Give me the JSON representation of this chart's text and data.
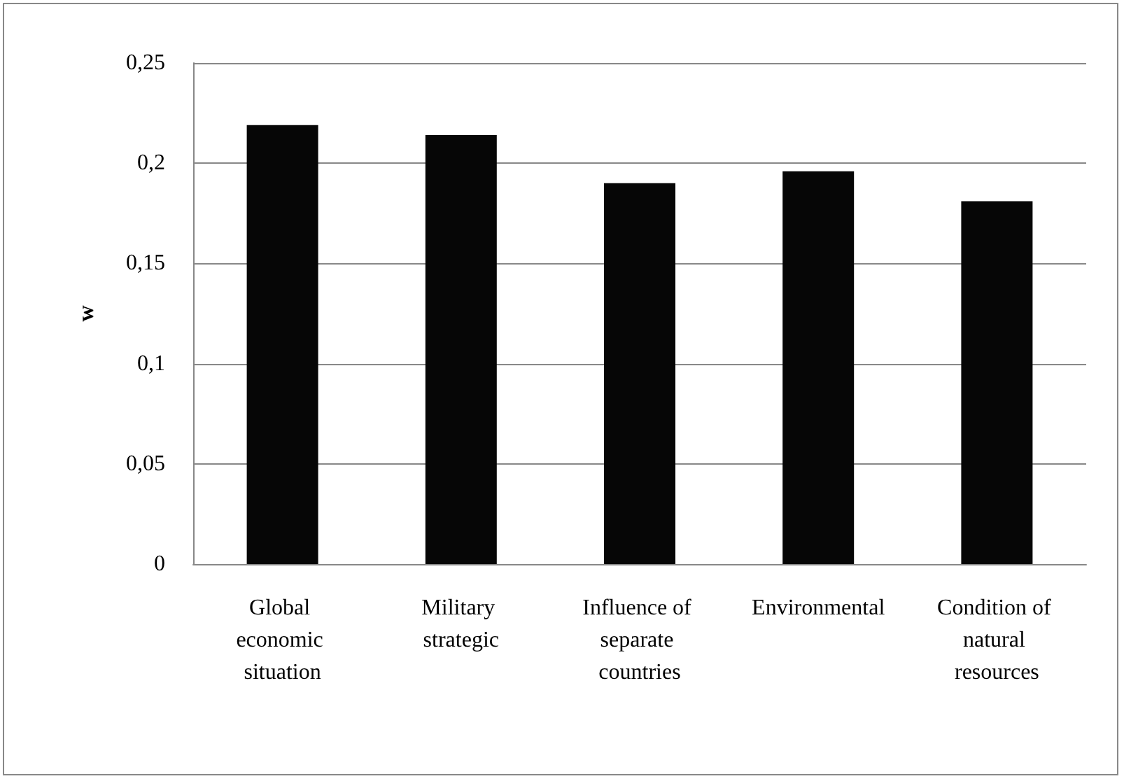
{
  "chart_data": {
    "type": "bar",
    "ylabel": "w",
    "categories": [
      "Global economic situation",
      "Military strategic",
      "Influence of separate countries",
      "Environmental",
      "Condition of natural resources"
    ],
    "values": [
      0.219,
      0.214,
      0.19,
      0.196,
      0.181
    ],
    "color": "#060606",
    "ylim": [
      0,
      0.25
    ],
    "yticks": [
      {
        "value": 0,
        "label": "0"
      },
      {
        "value": 0.05,
        "label": "0,05"
      },
      {
        "value": 0.1,
        "label": "0,1"
      },
      {
        "value": 0.15,
        "label": "0,15"
      },
      {
        "value": 0.2,
        "label": "0,2"
      },
      {
        "value": 0.25,
        "label": "0,25"
      }
    ],
    "grid": "y"
  }
}
